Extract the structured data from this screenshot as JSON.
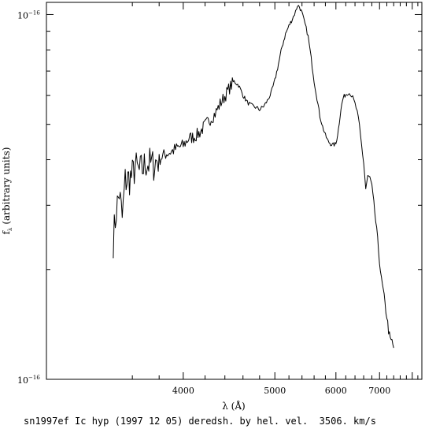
{
  "chart_data": {
    "type": "line",
    "xlabel": "λ (Å)",
    "ylabel": "fλ (arbitrary units)",
    "ylabel_main": "f",
    "ylabel_sub": "λ",
    "ylabel_rest": " (arbitrary units)",
    "caption": "sn1997ef Ic hyp (1997 12 05) deredsh. by hel. vel.  3506. km/s",
    "x_scale": "reciprocal",
    "y_scale": "log",
    "xlim": [
      3080,
      8350
    ],
    "ylim": [
      1e-17,
      1.08e-16
    ],
    "x_ticks": [
      {
        "value": 4000,
        "label": "4000"
      },
      {
        "value": 5000,
        "label": "5000"
      },
      {
        "value": 6000,
        "label": "6000"
      },
      {
        "value": 7000,
        "label": "7000"
      }
    ],
    "y_ticks": [
      {
        "base": "10",
        "exp": "−16",
        "value": 1e-16
      },
      {
        "base": "10",
        "exp": "−16",
        "value": 1e-17
      }
    ],
    "series": [
      {
        "x": [
          3470,
          3490,
          3510,
          3530,
          3550,
          3580,
          3600,
          3620,
          3650,
          3680,
          3700,
          3720,
          3750,
          3780,
          3800,
          3830,
          3860,
          3900,
          3950,
          4000,
          4050,
          4100,
          4150,
          4200,
          4250,
          4300,
          4350,
          4400,
          4450,
          4500,
          4550,
          4600,
          4650,
          4700,
          4750,
          4800,
          4850,
          4900,
          4950,
          5000,
          5050,
          5100,
          5150,
          5200,
          5250,
          5300,
          5330,
          5360,
          5400,
          5450,
          5500,
          5550,
          5600,
          5650,
          5700,
          5750,
          5800,
          5850,
          5900,
          5950,
          6000,
          6050,
          6100,
          6150,
          6200,
          6250,
          6300,
          6350,
          6400,
          6450,
          6500,
          6550,
          6600,
          6650,
          6700,
          6750,
          6800,
          6850,
          6900,
          6950,
          7000,
          7050,
          7100,
          7150,
          7200,
          7250,
          7300,
          7350,
          7400
        ],
        "y": [
          2.41e-17,
          2.91e-17,
          3.25e-17,
          2.75e-17,
          3.5e-17,
          3.55e-17,
          3.62e-17,
          3.82e-17,
          3.69e-17,
          3.8e-17,
          3.93e-17,
          3.9e-17,
          3.86e-17,
          3.97e-17,
          4e-17,
          4.1e-17,
          4.16e-17,
          4.21e-17,
          4.31e-17,
          4.38e-17,
          4.58e-17,
          4.62e-17,
          4.75e-17,
          4.97e-17,
          5.17e-17,
          5.35e-17,
          5.69e-17,
          5.97e-17,
          6.3e-17,
          6.56e-17,
          6.4e-17,
          6.01e-17,
          5.75e-17,
          5.63e-17,
          5.57e-17,
          5.49e-17,
          5.6e-17,
          5.8e-17,
          6.1e-17,
          6.6e-17,
          7.32e-17,
          8.16e-17,
          8.85e-17,
          9.31e-17,
          9.72e-17,
          1.02e-16,
          1.06e-16,
          1.05e-16,
          1.01e-16,
          9.39e-17,
          8.71e-17,
          7.58e-17,
          6.58e-17,
          5.89e-17,
          5.27e-17,
          4.93e-17,
          4.67e-17,
          4.49e-17,
          4.42e-17,
          4.39e-17,
          4.42e-17,
          4.85e-17,
          5.52e-17,
          5.93e-17,
          6.04e-17,
          6.11e-17,
          6.06e-17,
          5.92e-17,
          5.69e-17,
          5.4e-17,
          4.96e-17,
          4.39e-17,
          3.92e-17,
          3.33e-17,
          3.6e-17,
          3.58e-17,
          3.39e-17,
          3.05e-17,
          2.7e-17,
          2.4e-17,
          2.12e-17,
          1.87e-17,
          1.75e-17,
          1.6e-17,
          1.49e-17,
          1.36e-17,
          1.28e-17,
          1.27e-17,
          1.22e-17
        ]
      }
    ]
  }
}
